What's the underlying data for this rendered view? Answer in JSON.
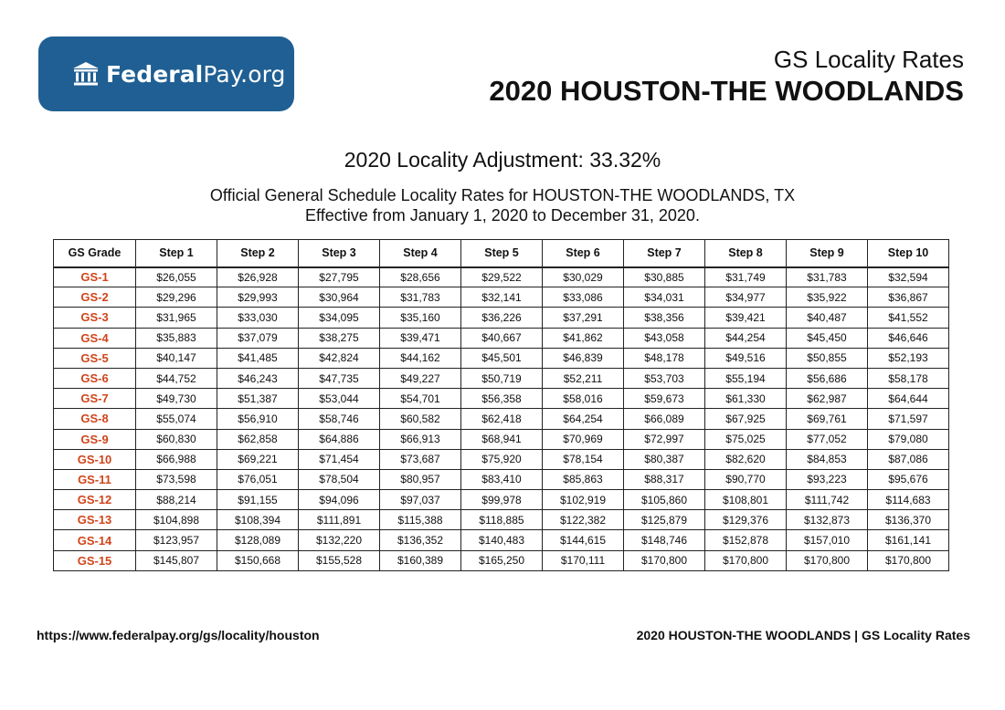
{
  "logo": {
    "icon": "bank-building-icon",
    "text_bold": "Federal",
    "text_regular": "Pay.org",
    "background": "#1f5f93"
  },
  "header": {
    "subtitle": "GS Locality Rates",
    "title": "2020 HOUSTON-THE WOODLANDS"
  },
  "adjustment": "2020 Locality Adjustment: 33.32%",
  "description": {
    "line1": "Official General Schedule Locality Rates for HOUSTON-THE WOODLANDS, TX",
    "line2": "Effective from January 1, 2020 to December 31, 2020."
  },
  "table": {
    "headers": [
      "GS Grade",
      "Step 1",
      "Step 2",
      "Step 3",
      "Step 4",
      "Step 5",
      "Step 6",
      "Step 7",
      "Step 8",
      "Step 9",
      "Step 10"
    ],
    "grade_color": "#d0451b",
    "rows": [
      [
        "GS-1",
        "$26,055",
        "$26,928",
        "$27,795",
        "$28,656",
        "$29,522",
        "$30,029",
        "$30,885",
        "$31,749",
        "$31,783",
        "$32,594"
      ],
      [
        "GS-2",
        "$29,296",
        "$29,993",
        "$30,964",
        "$31,783",
        "$32,141",
        "$33,086",
        "$34,031",
        "$34,977",
        "$35,922",
        "$36,867"
      ],
      [
        "GS-3",
        "$31,965",
        "$33,030",
        "$34,095",
        "$35,160",
        "$36,226",
        "$37,291",
        "$38,356",
        "$39,421",
        "$40,487",
        "$41,552"
      ],
      [
        "GS-4",
        "$35,883",
        "$37,079",
        "$38,275",
        "$39,471",
        "$40,667",
        "$41,862",
        "$43,058",
        "$44,254",
        "$45,450",
        "$46,646"
      ],
      [
        "GS-5",
        "$40,147",
        "$41,485",
        "$42,824",
        "$44,162",
        "$45,501",
        "$46,839",
        "$48,178",
        "$49,516",
        "$50,855",
        "$52,193"
      ],
      [
        "GS-6",
        "$44,752",
        "$46,243",
        "$47,735",
        "$49,227",
        "$50,719",
        "$52,211",
        "$53,703",
        "$55,194",
        "$56,686",
        "$58,178"
      ],
      [
        "GS-7",
        "$49,730",
        "$51,387",
        "$53,044",
        "$54,701",
        "$56,358",
        "$58,016",
        "$59,673",
        "$61,330",
        "$62,987",
        "$64,644"
      ],
      [
        "GS-8",
        "$55,074",
        "$56,910",
        "$58,746",
        "$60,582",
        "$62,418",
        "$64,254",
        "$66,089",
        "$67,925",
        "$69,761",
        "$71,597"
      ],
      [
        "GS-9",
        "$60,830",
        "$62,858",
        "$64,886",
        "$66,913",
        "$68,941",
        "$70,969",
        "$72,997",
        "$75,025",
        "$77,052",
        "$79,080"
      ],
      [
        "GS-10",
        "$66,988",
        "$69,221",
        "$71,454",
        "$73,687",
        "$75,920",
        "$78,154",
        "$80,387",
        "$82,620",
        "$84,853",
        "$87,086"
      ],
      [
        "GS-11",
        "$73,598",
        "$76,051",
        "$78,504",
        "$80,957",
        "$83,410",
        "$85,863",
        "$88,317",
        "$90,770",
        "$93,223",
        "$95,676"
      ],
      [
        "GS-12",
        "$88,214",
        "$91,155",
        "$94,096",
        "$97,037",
        "$99,978",
        "$102,919",
        "$105,860",
        "$108,801",
        "$111,742",
        "$114,683"
      ],
      [
        "GS-13",
        "$104,898",
        "$108,394",
        "$111,891",
        "$115,388",
        "$118,885",
        "$122,382",
        "$125,879",
        "$129,376",
        "$132,873",
        "$136,370"
      ],
      [
        "GS-14",
        "$123,957",
        "$128,089",
        "$132,220",
        "$136,352",
        "$140,483",
        "$144,615",
        "$148,746",
        "$152,878",
        "$157,010",
        "$161,141"
      ],
      [
        "GS-15",
        "$145,807",
        "$150,668",
        "$155,528",
        "$160,389",
        "$165,250",
        "$170,111",
        "$170,800",
        "$170,800",
        "$170,800",
        "$170,800"
      ]
    ]
  },
  "footer": {
    "url": "https://www.federalpay.org/gs/locality/houston",
    "caption": "2020 HOUSTON-THE WOODLANDS | GS Locality Rates"
  }
}
